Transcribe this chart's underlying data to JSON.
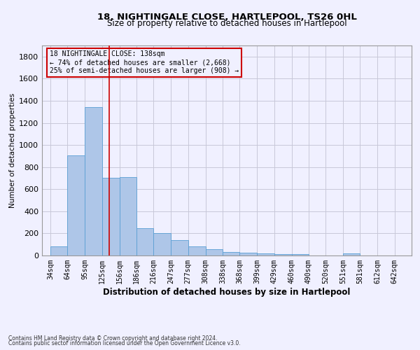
{
  "title1": "18, NIGHTINGALE CLOSE, HARTLEPOOL, TS26 0HL",
  "title2": "Size of property relative to detached houses in Hartlepool",
  "xlabel": "Distribution of detached houses by size in Hartlepool",
  "ylabel": "Number of detached properties",
  "footnote1": "Contains HM Land Registry data © Crown copyright and database right 2024.",
  "footnote2": "Contains public sector information licensed under the Open Government Licence v3.0.",
  "annotation_line1": "18 NIGHTINGALE CLOSE: 138sqm",
  "annotation_line2": "← 74% of detached houses are smaller (2,668)",
  "annotation_line3": "25% of semi-detached houses are larger (908) →",
  "bar_left_edges": [
    34,
    64,
    95,
    125,
    156,
    186,
    216,
    247,
    277,
    308,
    338,
    368,
    399,
    429,
    460,
    490,
    520,
    551,
    581,
    612
  ],
  "bar_widths": [
    30,
    31,
    30,
    31,
    30,
    30,
    31,
    30,
    31,
    30,
    30,
    31,
    30,
    31,
    30,
    30,
    31,
    30,
    31,
    30
  ],
  "bar_heights": [
    80,
    905,
    1340,
    705,
    710,
    245,
    205,
    140,
    85,
    55,
    30,
    25,
    20,
    15,
    10,
    0,
    0,
    20,
    0,
    0
  ],
  "bar_color": "#aec6e8",
  "bar_edge_color": "#5a9fd4",
  "property_line_x": 138,
  "property_line_color": "#cc0000",
  "ylim": [
    0,
    1900
  ],
  "yticks": [
    0,
    200,
    400,
    600,
    800,
    1000,
    1200,
    1400,
    1600,
    1800
  ],
  "xtick_labels": [
    "34sqm",
    "64sqm",
    "95sqm",
    "125sqm",
    "156sqm",
    "186sqm",
    "216sqm",
    "247sqm",
    "277sqm",
    "308sqm",
    "338sqm",
    "368sqm",
    "399sqm",
    "429sqm",
    "460sqm",
    "490sqm",
    "520sqm",
    "551sqm",
    "581sqm",
    "612sqm",
    "642sqm"
  ],
  "xtick_positions": [
    34,
    64,
    95,
    125,
    156,
    186,
    216,
    247,
    277,
    308,
    338,
    368,
    399,
    429,
    460,
    490,
    520,
    551,
    581,
    612,
    642
  ],
  "bg_color": "#f0f0ff",
  "grid_color": "#c8c8d8",
  "title1_fontsize": 9.5,
  "title2_fontsize": 8.5,
  "xlabel_fontsize": 8.5,
  "ylabel_fontsize": 7.5,
  "tick_fontsize": 7,
  "footnote_fontsize": 5.5,
  "annotation_fontsize": 7
}
